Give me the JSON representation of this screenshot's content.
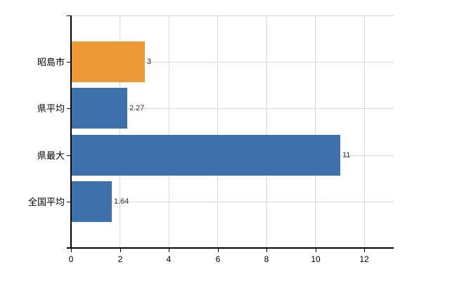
{
  "chart_data": {
    "type": "bar",
    "orientation": "horizontal",
    "title": "",
    "xlabel": "",
    "ylabel": "",
    "categories": [
      "昭島市",
      "県平均",
      "県最大",
      "全国平均"
    ],
    "values": [
      3,
      2.27,
      11,
      1.64
    ],
    "value_labels": [
      "3",
      "2.27",
      "11",
      "1.64"
    ],
    "bar_colors": [
      "#ec9a38",
      "#3e70ac",
      "#3e70ac",
      "#3e70ac"
    ],
    "x_ticks": [
      0,
      2,
      4,
      6,
      8,
      10,
      12
    ],
    "x_tick_labels": [
      "0",
      "2",
      "4",
      "6",
      "8",
      "10",
      "12"
    ],
    "xlim": [
      0,
      13.2
    ],
    "grid": true,
    "legend": "none",
    "colors": {
      "highlight_orange": "#ec9a38",
      "series_blue": "#3e70ac",
      "gridline": "#d5dad2",
      "axis": "#000000",
      "value_text": "#333333",
      "label_text": "#000000",
      "background": "#ffffff"
    }
  }
}
